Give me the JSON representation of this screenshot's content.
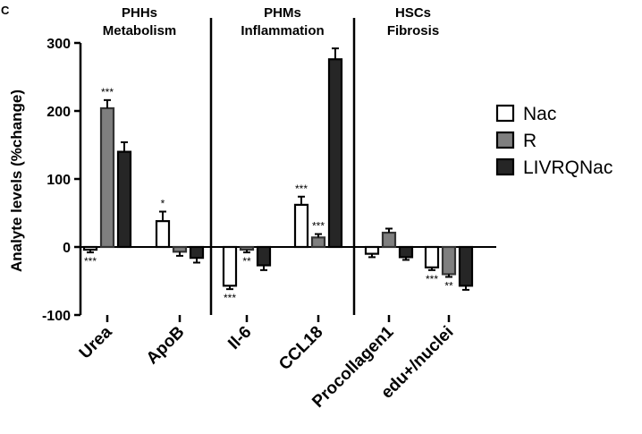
{
  "panel_label": "C",
  "chart_data": {
    "type": "bar",
    "title": "",
    "xlabel": "",
    "ylabel": "Analyte levels (%change)",
    "ylim": [
      -100,
      300
    ],
    "yticks": [
      -100,
      0,
      100,
      200,
      300
    ],
    "categories": [
      "Urea",
      "ApoB",
      "Il-6",
      "CCL18",
      "Procollagen1",
      "edu+/nuclei"
    ],
    "groups": [
      {
        "line1": "PHHs",
        "line2": "Metabolism",
        "categories": [
          "Urea",
          "ApoB"
        ]
      },
      {
        "line1": "PHMs",
        "line2": "Inflammation",
        "categories": [
          "Il-6",
          "CCL18"
        ]
      },
      {
        "line1": "HSCs",
        "line2": "Fibrosis",
        "categories": [
          "Procollagen1",
          "edu+/nuclei"
        ]
      }
    ],
    "legend_position": "right",
    "series": [
      {
        "name": "Nac",
        "color": "#ffffff",
        "values": [
          -4,
          38,
          -57,
          62,
          -10,
          -30
        ],
        "errors": [
          4,
          14,
          5,
          12,
          5,
          4
        ],
        "significance": [
          "***",
          "*",
          "***",
          "***",
          "",
          "***"
        ]
      },
      {
        "name": "R",
        "color": "#7f7f7f",
        "values": [
          204,
          -7,
          -4,
          14,
          21,
          -40
        ],
        "errors": [
          12,
          6,
          4,
          5,
          6,
          4
        ],
        "significance": [
          "***",
          "",
          "**",
          "***",
          "",
          "**"
        ]
      },
      {
        "name": "LIVRQNac",
        "color": "#262626",
        "values": [
          140,
          -16,
          -27,
          276,
          -15,
          -57
        ],
        "errors": [
          14,
          7,
          7,
          16,
          4,
          6
        ],
        "significance": [
          "",
          "",
          "",
          "",
          "",
          ""
        ]
      }
    ]
  }
}
